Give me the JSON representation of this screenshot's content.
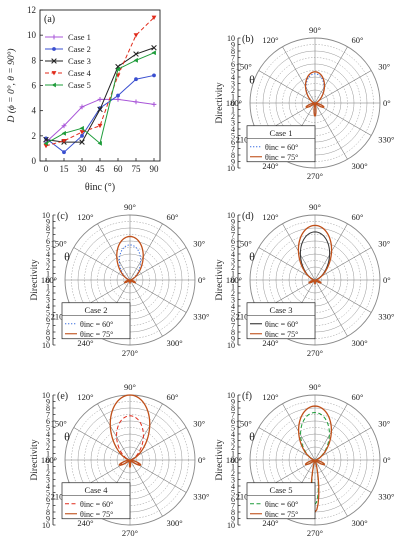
{
  "chart_data": [
    {
      "panel": "(a)",
      "type": "line",
      "xlabel": "θinc (°)",
      "ylabel": "D (ϕ = 0°, θ = 90°)",
      "x": [
        0,
        15,
        30,
        45,
        60,
        75,
        90
      ],
      "xticks": [
        "0",
        "15",
        "30",
        "45",
        "60",
        "75",
        "90"
      ],
      "yticks": [
        "0",
        "2",
        "4",
        "6",
        "8",
        "10",
        "12"
      ],
      "xlim": [
        -5,
        95
      ],
      "ylim": [
        0,
        12
      ],
      "legend_position": "top-left",
      "series": [
        {
          "name": "Case 1",
          "color": "#a855d8",
          "marker": "plus",
          "dash": "solid",
          "values": [
            1.5,
            2.8,
            4.3,
            4.9,
            4.9,
            4.7,
            4.5
          ]
        },
        {
          "name": "Case 2",
          "color": "#3a4fd0",
          "marker": "circle",
          "dash": "solid",
          "values": [
            1.8,
            0.7,
            2.0,
            4.2,
            5.2,
            6.5,
            6.8
          ]
        },
        {
          "name": "Case 3",
          "color": "#222222",
          "marker": "x",
          "dash": "solid",
          "values": [
            1.7,
            1.5,
            1.5,
            4.1,
            7.5,
            8.5,
            9.0
          ]
        },
        {
          "name": "Case 4",
          "color": "#e02a1a",
          "marker": "triangle-down",
          "dash": "dashed",
          "values": [
            1.2,
            1.6,
            2.3,
            2.8,
            6.8,
            10.0,
            11.4
          ]
        },
        {
          "name": "Case 5",
          "color": "#1e9c3a",
          "marker": "triangle-left",
          "dash": "solid",
          "values": [
            1.4,
            2.2,
            2.6,
            1.4,
            7.3,
            8.0,
            8.6
          ]
        }
      ]
    },
    {
      "panel": "(b)",
      "type": "polar",
      "case": "Case 1",
      "rlabel": "Directivity",
      "theta_label": "θ",
      "rmax": 10,
      "legend_entries": [
        {
          "label": "θinc = 60°",
          "color": "#3a6fe0",
          "dash": "dotted"
        },
        {
          "label": "θinc = 75°",
          "color": "#c0501a",
          "dash": "solid"
        }
      ],
      "series": [
        {
          "name": "θinc = 60°",
          "color": "#3a6fe0",
          "main": 4.5,
          "side": 1.4,
          "back": 1.8
        },
        {
          "name": "θinc = 75°",
          "color": "#c0501a",
          "main": 4.8,
          "side": 1.5,
          "back": 2.0
        }
      ]
    },
    {
      "panel": "(c)",
      "type": "polar",
      "case": "Case 2",
      "rlabel": "Directivity",
      "theta_label": "θ",
      "rmax": 10,
      "legend_entries": [
        {
          "label": "θinc = 60°",
          "color": "#3a6fe0",
          "dash": "dotted"
        },
        {
          "label": "θinc = 75°",
          "color": "#c0501a",
          "dash": "solid"
        }
      ],
      "series": [
        {
          "name": "θinc = 60°",
          "color": "#3a6fe0",
          "main": 5.4,
          "side": 0.8,
          "back": 0.4
        },
        {
          "name": "θinc = 75°",
          "color": "#c0501a",
          "main": 6.7,
          "side": 0.9,
          "back": 0.5
        }
      ]
    },
    {
      "panel": "(d)",
      "type": "polar",
      "case": "Case 3",
      "rlabel": "Directivity",
      "theta_label": "θ",
      "rmax": 10,
      "legend_entries": [
        {
          "label": "θinc = 60°",
          "color": "#333333",
          "dash": "solid"
        },
        {
          "label": "θinc = 75°",
          "color": "#c0501a",
          "dash": "solid"
        }
      ],
      "series": [
        {
          "name": "θinc = 60°",
          "color": "#333333",
          "main": 7.4,
          "side": 1.0,
          "back": 0.6
        },
        {
          "name": "θinc = 75°",
          "color": "#c0501a",
          "main": 8.4,
          "side": 1.0,
          "back": 0.6
        }
      ]
    },
    {
      "panel": "(e)",
      "type": "polar",
      "case": "Case 4",
      "rlabel": "Directivity",
      "theta_label": "θ",
      "rmax": 10,
      "legend_entries": [
        {
          "label": "θinc = 60°",
          "color": "#e02a1a",
          "dash": "dashed"
        },
        {
          "label": "θinc = 75°",
          "color": "#c0501a",
          "dash": "solid"
        }
      ],
      "series": [
        {
          "name": "θinc = 60°",
          "color": "#e02a1a",
          "main": 6.8,
          "side": 1.5,
          "back": 1.0
        },
        {
          "name": "θinc = 75°",
          "color": "#c0501a",
          "main": 10.0,
          "side": 1.8,
          "back": 1.1
        }
      ]
    },
    {
      "panel": "(f)",
      "type": "polar",
      "case": "Case 5",
      "rlabel": "Directivity",
      "theta_label": "θ",
      "rmax": 10,
      "legend_entries": [
        {
          "label": "θinc = 60°",
          "color": "#1e9c3a",
          "dash": "dashed"
        },
        {
          "label": "θinc = 75°",
          "color": "#c0501a",
          "dash": "solid"
        }
      ],
      "series": [
        {
          "name": "θinc = 60°",
          "color": "#1e9c3a",
          "main": 7.3,
          "side": 1.5,
          "back": 6.8
        },
        {
          "name": "θinc = 75°",
          "color": "#c0501a",
          "main": 8.3,
          "side": 1.6,
          "back": 8.0
        }
      ]
    }
  ],
  "polar_angle_labels": [
    "90°",
    "120°",
    "150°",
    "180°",
    "210°",
    "240°",
    "270°",
    "300°",
    "330°",
    "0°",
    "30°",
    "60°"
  ],
  "polar_r_ticks": [
    "0",
    "1",
    "2",
    "3",
    "4",
    "5",
    "6",
    "7",
    "8",
    "9",
    "10"
  ]
}
